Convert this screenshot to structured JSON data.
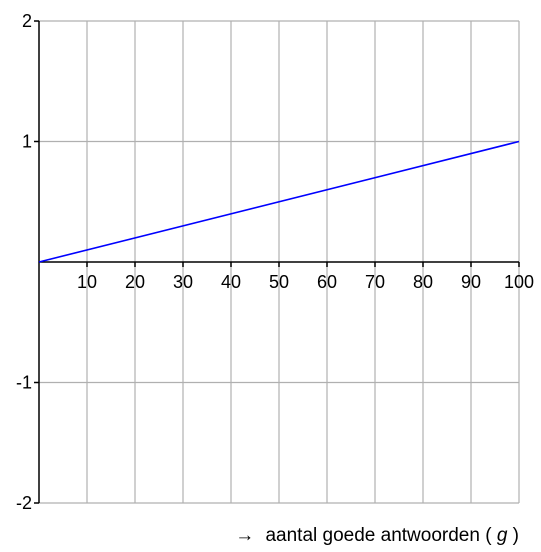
{
  "chart_data": {
    "type": "line",
    "title": "",
    "x_tick_labels": [
      "10",
      "20",
      "30",
      "40",
      "50",
      "60",
      "70",
      "80",
      "90",
      "100"
    ],
    "y_tick_labels": [
      "2",
      "1",
      "-1",
      "-2"
    ],
    "xlim": [
      0,
      100
    ],
    "ylim": [
      -2,
      2
    ],
    "x_ticks": [
      10,
      20,
      30,
      40,
      50,
      60,
      70,
      80,
      90,
      100
    ],
    "y_ticks": [
      2,
      1,
      -1,
      -2
    ],
    "grid": true,
    "xlabel": {
      "arrow": "→",
      "text": "aantal goede antwoorden (",
      "variable": "g",
      "close": ")"
    },
    "ylabel": "",
    "series": [
      {
        "x": [
          0,
          100
        ],
        "y": [
          0,
          1
        ],
        "color": "#0000ff"
      }
    ],
    "colors": {
      "grid": "#b0b0b0",
      "axis": "#000000",
      "line": "#0000ff"
    }
  }
}
